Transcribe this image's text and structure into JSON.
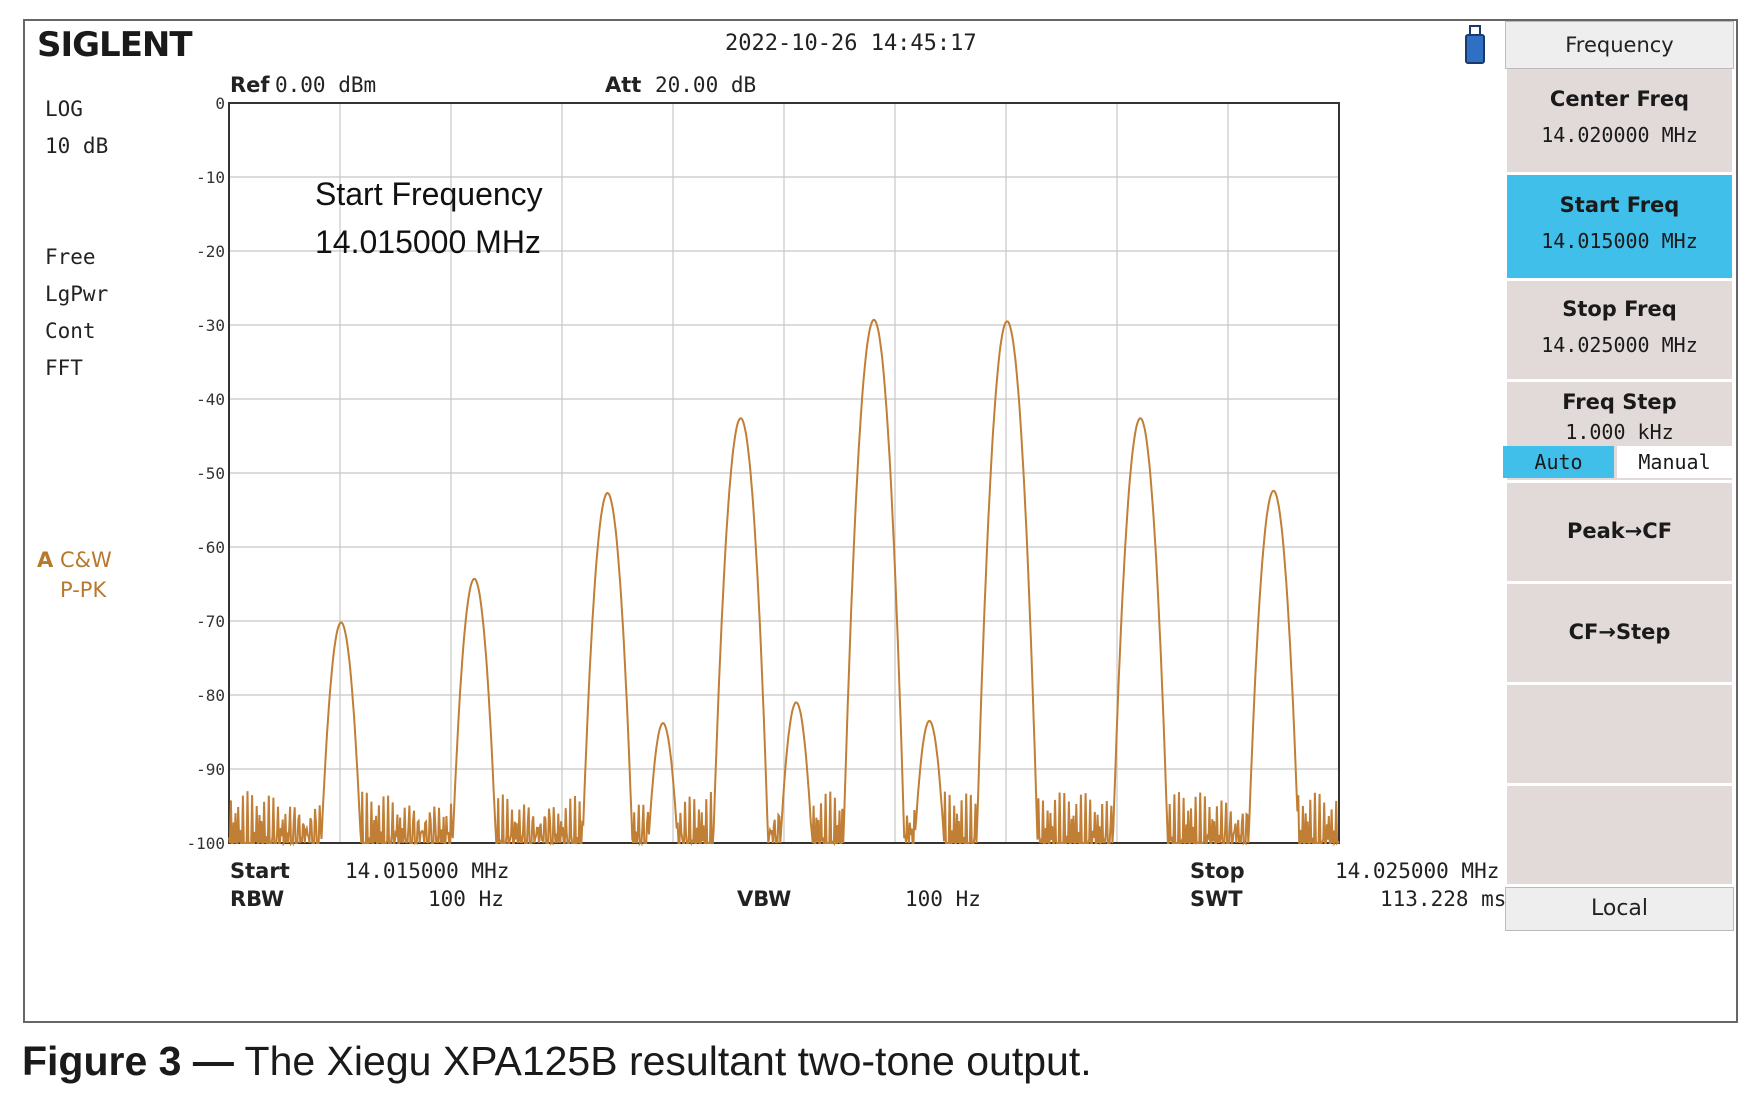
{
  "topbar": {
    "brand": "SIGLENT",
    "datetime": "2022-10-26   14:45:17"
  },
  "left": {
    "scale_mode": "LOG",
    "scale_div": "10 dB",
    "trig": "Free",
    "avg": "LgPwr",
    "sweep": "Cont",
    "sweep_type": "FFT",
    "trace_id": "A",
    "trace_mode": "C&W",
    "detector": "P-PK"
  },
  "header": {
    "ref_label": "Ref",
    "ref_value": "0.00 dBm",
    "att_label": "Att",
    "att_value": "20.00 dB"
  },
  "annotation": {
    "line1": "Start Frequency",
    "line2": "14.015000 MHz"
  },
  "footer": {
    "start_label": "Start",
    "start_value": "14.015000 MHz",
    "stop_label": "Stop",
    "stop_value": "14.025000 MHz",
    "rbw_label": "RBW",
    "rbw_value": "100 Hz",
    "vbw_label": "VBW",
    "vbw_value": "100 Hz",
    "swt_label": "SWT",
    "swt_value": "113.228 ms"
  },
  "softkeys": {
    "title": "Frequency",
    "center": {
      "label": "Center Freq",
      "value": "14.020000 MHz"
    },
    "start": {
      "label": "Start Freq",
      "value": "14.015000 MHz"
    },
    "stop": {
      "label": "Stop Freq",
      "value": "14.025000 MHz"
    },
    "step": {
      "label": "Freq Step",
      "value": "1.000 kHz",
      "auto": "Auto",
      "manual": "Manual",
      "selected": "Auto"
    },
    "peak_cf": "Peak→CF",
    "cf_step": "CF→Step",
    "local": "Local"
  },
  "colors": {
    "trace": "#c17f35",
    "active_key": "#3fbfe9",
    "key_bg": "#e2d9d9"
  },
  "caption": {
    "fig": "Figure 3 —",
    "text": " The Xiegu XPA125B resultant two-tone output."
  },
  "chart_data": {
    "type": "line",
    "x_unit": "MHz",
    "xlim": [
      14.015,
      14.025
    ],
    "ylim": [
      -100,
      0
    ],
    "y_ticks": [
      "0",
      "-10",
      "-20",
      "-30",
      "-40",
      "-50",
      "-60",
      "-70",
      "-80",
      "-90",
      "-100"
    ],
    "grid": true,
    "series": [
      {
        "peaks": [
          {
            "x": 14.01601,
            "y": -70.2
          },
          {
            "x": 14.01721,
            "y": -64.3
          },
          {
            "x": 14.01841,
            "y": -52.7
          },
          {
            "x": 14.01891,
            "y": -83.8
          },
          {
            "x": 14.01961,
            "y": -42.6
          },
          {
            "x": 14.02011,
            "y": -81.0
          },
          {
            "x": 14.02081,
            "y": -29.3
          },
          {
            "x": 14.02131,
            "y": -83.5
          },
          {
            "x": 14.02201,
            "y": -29.5
          },
          {
            "x": 14.02321,
            "y": -42.6
          },
          {
            "x": 14.02441,
            "y": -52.4
          }
        ],
        "floor": -100
      }
    ]
  }
}
